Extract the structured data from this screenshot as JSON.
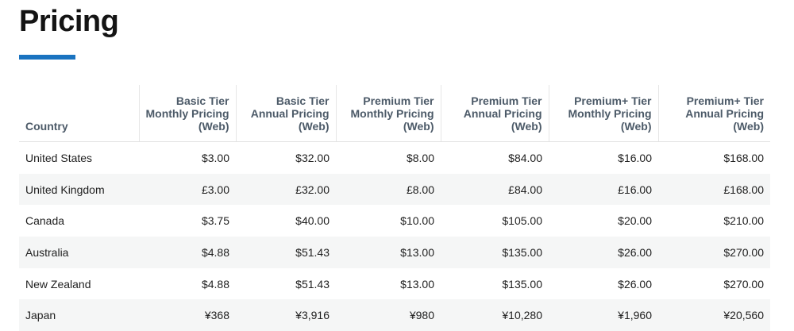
{
  "page": {
    "title": "Pricing"
  },
  "table": {
    "headers": [
      [
        "Country"
      ],
      [
        "Basic Tier",
        "Monthly Pricing",
        "(Web)"
      ],
      [
        "Basic Tier",
        "Annual Pricing",
        "(Web)"
      ],
      [
        "Premium Tier",
        "Monthly Pricing",
        "(Web)"
      ],
      [
        "Premium Tier",
        "Annual Pricing",
        "(Web)"
      ],
      [
        "Premium+ Tier",
        "Monthly Pricing",
        "(Web)"
      ],
      [
        "Premium+ Tier",
        "Annual Pricing",
        "(Web)"
      ]
    ],
    "rows": [
      [
        "United States",
        "$3.00",
        "$32.00",
        "$8.00",
        "$84.00",
        "$16.00",
        "$168.00"
      ],
      [
        "United Kingdom",
        "£3.00",
        "£32.00",
        "£8.00",
        "£84.00",
        "£16.00",
        "£168.00"
      ],
      [
        "Canada",
        "$3.75",
        "$40.00",
        "$10.00",
        "$105.00",
        "$20.00",
        "$210.00"
      ],
      [
        "Australia",
        "$4.88",
        "$51.43",
        "$13.00",
        "$135.00",
        "$26.00",
        "$270.00"
      ],
      [
        "New Zealand",
        "$4.88",
        "$51.43",
        "$13.00",
        "$135.00",
        "$26.00",
        "$270.00"
      ],
      [
        "Japan",
        "¥368",
        "¥3,916",
        "¥980",
        "¥10,280",
        "¥1,960",
        "¥20,560"
      ]
    ]
  },
  "colors": {
    "accent": "#1a73c0",
    "header_text": "#4c5a68",
    "row_stripe": "#f5f6f6"
  }
}
